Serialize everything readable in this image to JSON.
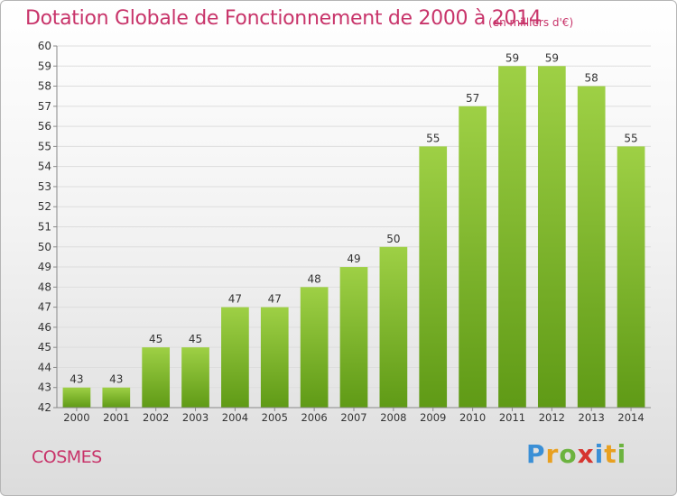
{
  "title": "Dotation Globale de Fonctionnement de 2000 à 2014",
  "subtitle": "(en milliers d'€)",
  "commune": "COSMES",
  "logo": {
    "letters": [
      "P",
      "r",
      "o",
      "x",
      "i",
      "t",
      "i"
    ],
    "colors": [
      "#3a8fd6",
      "#e8a020",
      "#6cb33f",
      "#d6352f",
      "#3a8fd6",
      "#e8a020",
      "#6cb33f"
    ]
  },
  "colors": {
    "bar_light": "#9ed045",
    "bar_dark": "#5f9a16",
    "text": "#333333",
    "grid": "#dddddd"
  },
  "chart_data": {
    "type": "bar",
    "categories": [
      "2000",
      "2001",
      "2002",
      "2003",
      "2004",
      "2005",
      "2006",
      "2007",
      "2008",
      "2009",
      "2010",
      "2011",
      "2012",
      "2013",
      "2014"
    ],
    "values": [
      43,
      43,
      45,
      45,
      47,
      47,
      48,
      49,
      50,
      55,
      57,
      59,
      59,
      58,
      55
    ],
    "ylim": [
      42,
      60
    ],
    "yticks": [
      "42",
      "43",
      "44",
      "45",
      "46",
      "47",
      "48",
      "49",
      "50",
      "51",
      "52",
      "53",
      "54",
      "55",
      "56",
      "57",
      "58",
      "59",
      "60"
    ],
    "grid": true
  }
}
